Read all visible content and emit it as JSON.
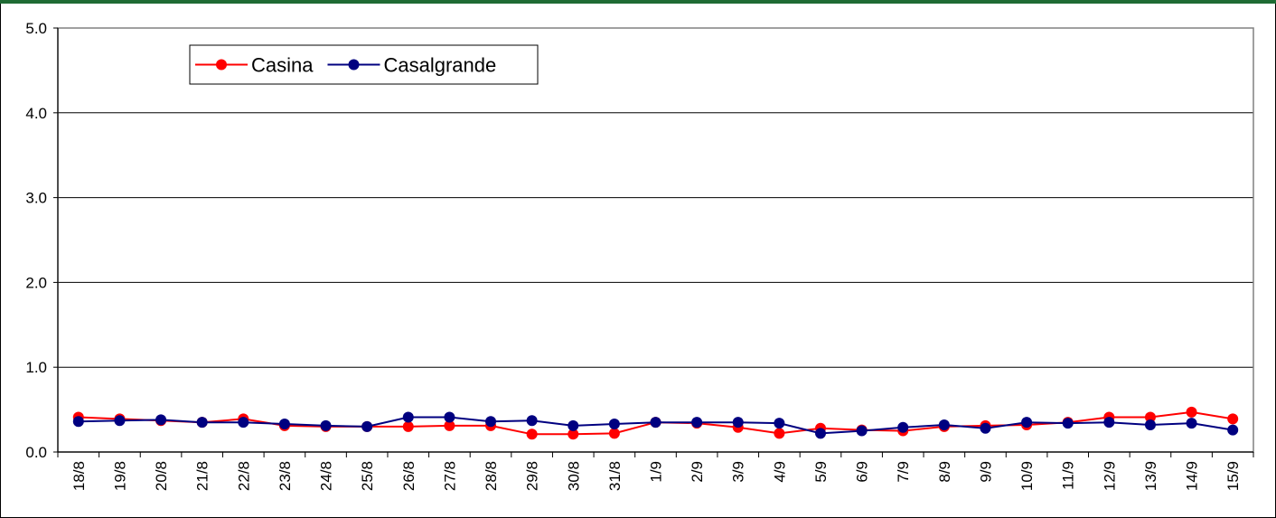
{
  "chart_data": {
    "type": "line",
    "categories": [
      "18/8",
      "19/8",
      "20/8",
      "21/8",
      "22/8",
      "23/8",
      "24/8",
      "25/8",
      "26/8",
      "27/8",
      "28/8",
      "29/8",
      "30/8",
      "31/8",
      "1/9",
      "2/9",
      "3/9",
      "4/9",
      "5/9",
      "6/9",
      "7/9",
      "8/9",
      "9/9",
      "10/9",
      "11/9",
      "12/9",
      "13/9",
      "14/9",
      "15/9"
    ],
    "series": [
      {
        "name": "Casina",
        "color": "#ff0000",
        "values": [
          0.41,
          0.39,
          0.37,
          0.35,
          0.39,
          0.31,
          0.3,
          0.3,
          0.3,
          0.31,
          0.31,
          0.21,
          0.21,
          0.22,
          0.35,
          0.34,
          0.29,
          0.22,
          0.28,
          0.26,
          0.25,
          0.3,
          0.31,
          0.32,
          0.35,
          0.41,
          0.41,
          0.47,
          0.39
        ]
      },
      {
        "name": "Casalgrande",
        "color": "#000080",
        "values": [
          0.36,
          0.37,
          0.38,
          0.35,
          0.35,
          0.33,
          0.31,
          0.3,
          0.41,
          0.41,
          0.36,
          0.37,
          0.31,
          0.33,
          0.35,
          0.35,
          0.35,
          0.34,
          0.22,
          0.25,
          0.29,
          0.32,
          0.28,
          0.35,
          0.34,
          0.35,
          0.32,
          0.34,
          0.26
        ]
      }
    ],
    "yticks": [
      "0.0",
      "1.0",
      "2.0",
      "3.0",
      "4.0",
      "5.0"
    ],
    "ylim": [
      0,
      5
    ],
    "grid": true,
    "legend_position": "top-left",
    "title": "",
    "xlabel": "",
    "ylabel": ""
  }
}
